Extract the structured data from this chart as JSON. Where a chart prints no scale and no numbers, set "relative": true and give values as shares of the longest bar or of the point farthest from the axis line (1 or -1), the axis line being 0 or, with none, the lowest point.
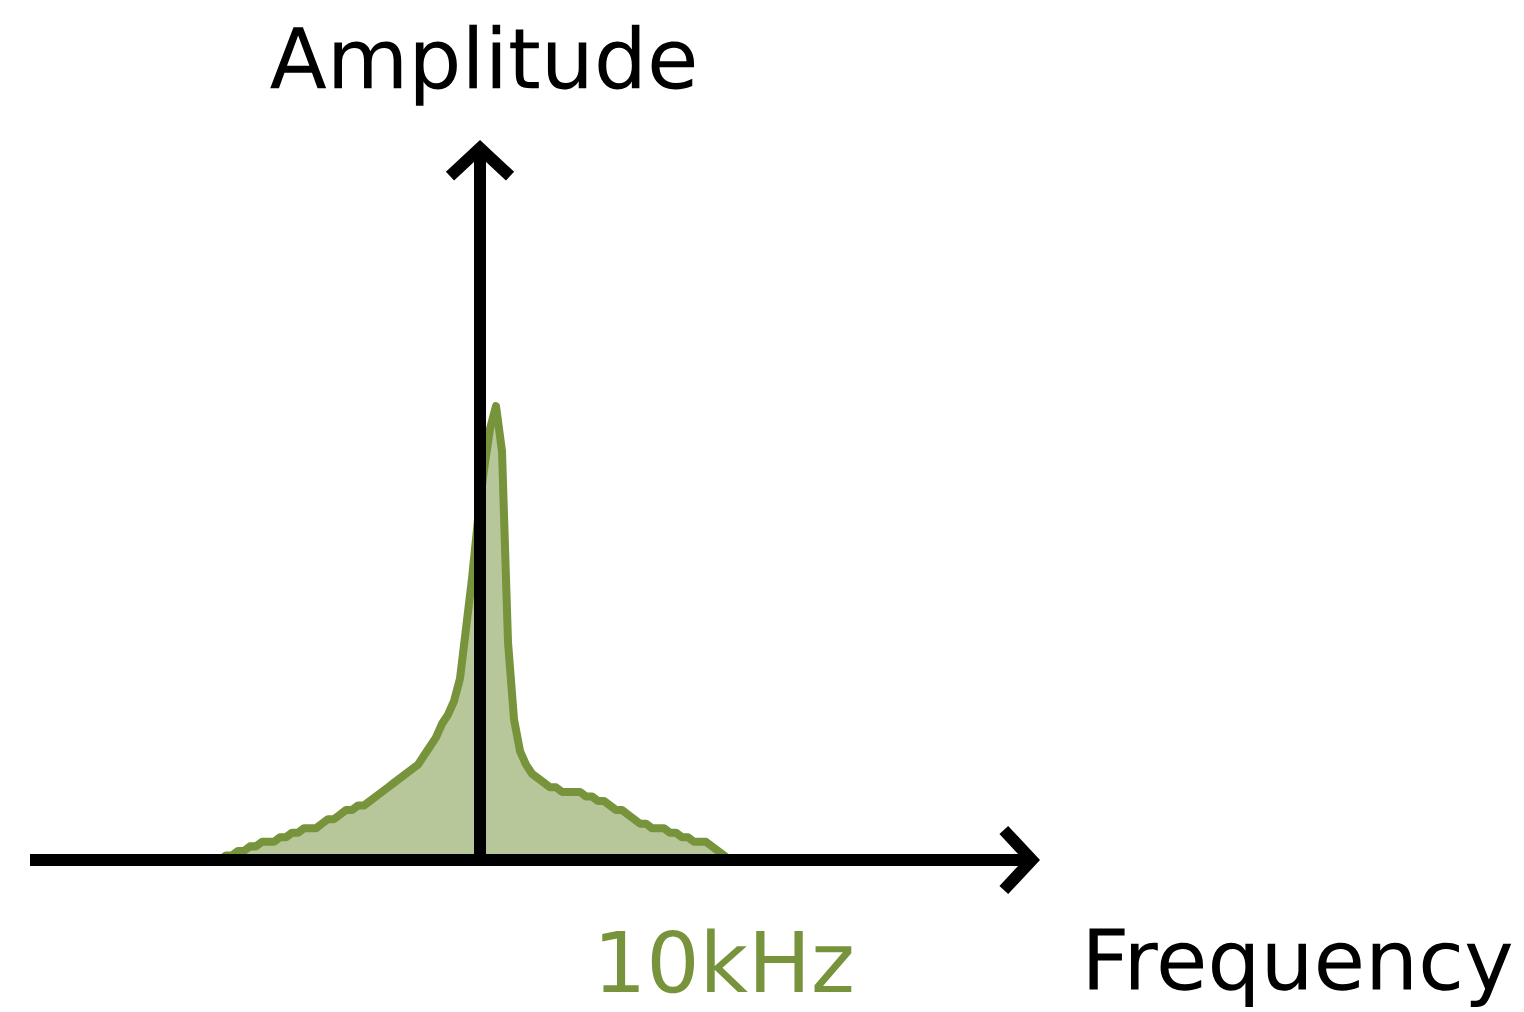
{
  "chart_data": {
    "type": "area",
    "relative": true,
    "xlabel": "Frequency",
    "ylabel": "Amplitude",
    "annotations": [
      "10kHz"
    ],
    "categories": [
      null,
      null,
      null,
      null,
      null,
      null,
      null,
      null,
      null,
      null,
      null,
      null,
      null,
      null,
      null,
      null,
      null,
      null,
      null,
      null,
      null,
      null,
      null,
      null,
      null,
      null,
      null,
      null,
      null,
      null,
      null,
      null,
      null,
      null,
      null,
      null,
      null,
      null,
      null,
      null,
      null,
      null,
      null,
      null,
      null,
      null,
      null,
      null,
      null,
      null,
      null,
      null,
      null,
      null,
      null,
      null,
      null,
      null,
      null,
      null,
      null,
      null,
      null,
      null,
      null,
      null,
      null,
      null,
      null,
      null,
      null,
      null,
      null,
      null,
      null,
      null,
      null,
      null,
      null,
      null,
      null,
      null,
      null,
      null,
      null,
      null
    ],
    "series": [
      {
        "color": "#77933c",
        "values": [
          0,
          0.01,
          0.01,
          0.02,
          0.02,
          0.03,
          0.03,
          0.04,
          0.04,
          0.04,
          0.05,
          0.05,
          0.06,
          0.06,
          0.07,
          0.07,
          0.07,
          0.08,
          0.09,
          0.09,
          0.1,
          0.11,
          0.11,
          0.12,
          0.12,
          0.13,
          0.14,
          0.15,
          0.16,
          0.17,
          0.18,
          0.19,
          0.2,
          0.21,
          0.23,
          0.25,
          0.27,
          0.3,
          0.32,
          0.35,
          0.4,
          0.51,
          0.62,
          0.75,
          0.86,
          0.95,
          1,
          0.9,
          0.48,
          0.31,
          0.24,
          0.21,
          0.19,
          0.18,
          0.17,
          0.16,
          0.16,
          0.15,
          0.15,
          0.15,
          0.15,
          0.14,
          0.14,
          0.13,
          0.13,
          0.12,
          0.11,
          0.11,
          0.1,
          0.09,
          0.08,
          0.08,
          0.07,
          0.07,
          0.07,
          0.06,
          0.06,
          0.05,
          0.05,
          0.04,
          0.04,
          0.04,
          0.03,
          0.02,
          0.01,
          0
        ]
      }
    ]
  }
}
